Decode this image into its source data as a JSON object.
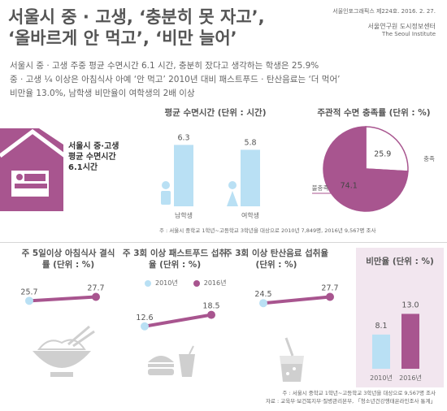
{
  "header": {
    "title": "서울시 중 · 고생, ‘충분히 못 자고’,\n‘올바르게 안 먹고’, ‘비만 늘어’",
    "issue": "서울인포그래픽스 제224호. 2016. 2. 27.",
    "org_kr": "서울연구원 도시정보센터",
    "org_en": "The Seoul Institute"
  },
  "summary": [
    "서울시 중 · 고생 주중 평균 수면시간 6.1 시간, 충분히 잤다고 생각하는 학생은 25.9%",
    "중 · 고생 ¼ 이상은 아침식사 아예 ‘안 먹고’ 2010년 대비 패스트푸드 · 탄산음료는 ‘더 먹어’",
    "비만율 13.0%, 남학생 비만율이 여학생의 2배 이상"
  ],
  "sleep_card": {
    "line1": "서울시 중·고생",
    "line2": "평균 수면시간",
    "line3": "6.1시간"
  },
  "source_note_top": "주 : 서울시 중학교 1학년~고등학교 3학년을 대상으로 2010년 7,849명, 2016년 9,567명 조사",
  "source_note_bottom": [
    "주 : 서울시 중학교 1학년~고등학교 3학년을 대상으로 9,567명 조사",
    "자료 : 교육부·보건복지부·질병관리본부, 「청소년건강행태온라인조사 통계」"
  ],
  "legend": {
    "y2010": "2010년",
    "y2016": "2016년"
  },
  "colors": {
    "accent": "#a8558f",
    "accent_light": "#f2e6ef",
    "light_blue": "#b9e0f4",
    "text": "#555555"
  },
  "icons": [
    "house-bed-icon",
    "male-student-icon",
    "female-student-icon",
    "rice-bowl-icon",
    "burger-icon",
    "drink-cup-icon",
    "soda-glass-icon"
  ],
  "chart_data": [
    {
      "type": "bar",
      "title": "평균 수면시간 (단위 : 시간)",
      "categories": [
        "남학생",
        "여학생"
      ],
      "values": [
        6.3,
        5.8
      ]
    },
    {
      "type": "pie",
      "title": "주관적 수면 충족률 (단위 : %)",
      "labels": [
        "충족",
        "불충족"
      ],
      "values": [
        25.9,
        74.1
      ]
    },
    {
      "type": "line",
      "title": "주 5일이상 아침식사 결식률 (단위 : %)",
      "x": [
        "2010년",
        "2016년"
      ],
      "values": [
        25.7,
        27.7
      ]
    },
    {
      "type": "line",
      "title": "주 3회 이상 패스트푸드 섭취율 (단위 : %)",
      "x": [
        "2010년",
        "2016년"
      ],
      "values": [
        12.6,
        18.5
      ]
    },
    {
      "type": "line",
      "title": "주 3회 이상 탄산음료 섭취율 (단위 : %)",
      "x": [
        "2010년",
        "2016년"
      ],
      "values": [
        24.5,
        27.7
      ]
    },
    {
      "type": "bar",
      "title": "비만율 (단위 : %)",
      "categories": [
        "2010년",
        "2016년"
      ],
      "values": [
        8.1,
        13.0
      ]
    }
  ]
}
